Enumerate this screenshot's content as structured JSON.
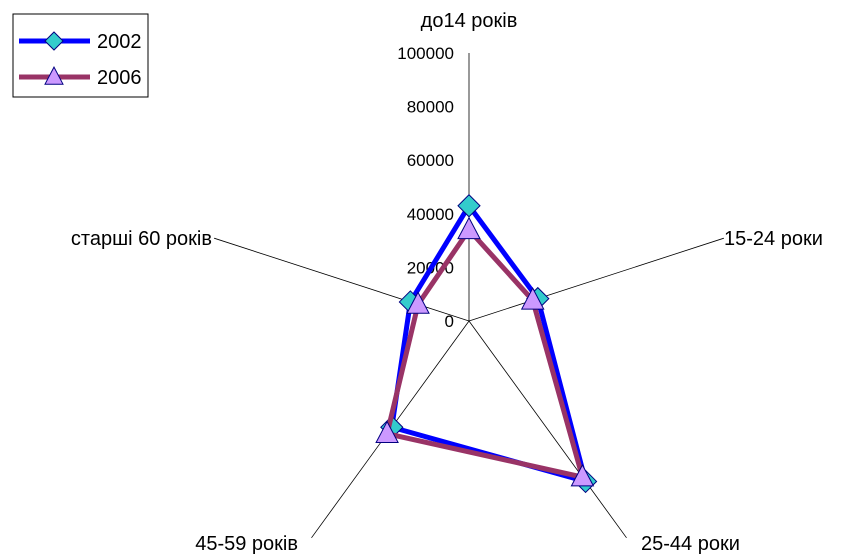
{
  "chart_data": {
    "type": "radar",
    "categories": [
      "до14 років",
      "15-24 роки",
      "25-44 роки",
      "45-59 років",
      "старші 60 років"
    ],
    "radial_ticks": [
      "0",
      "20000",
      "40000",
      "60000",
      "80000",
      "100000"
    ],
    "rmax": 100000,
    "series": [
      {
        "name": "2002",
        "values": [
          43000,
          27000,
          74000,
          49000,
          23000
        ],
        "color": "#0000ff",
        "marker": "diamond",
        "marker_fill": "#33cccc"
      },
      {
        "name": "2006",
        "values": [
          34000,
          25000,
          72000,
          52000,
          20000
        ],
        "color": "#993366",
        "marker": "triangle",
        "marker_fill": "#cc99ff"
      }
    ],
    "legend_position": "top-left",
    "grid": false
  }
}
